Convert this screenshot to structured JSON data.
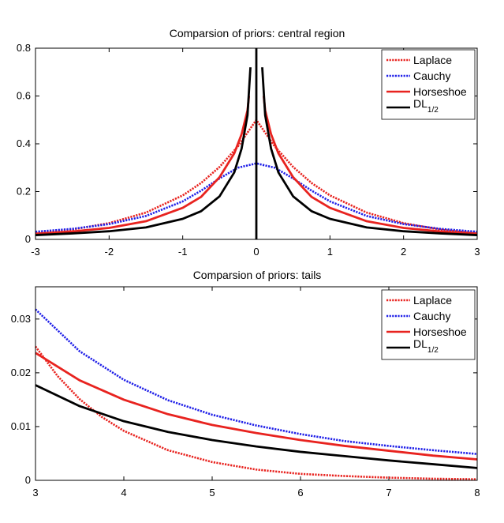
{
  "chart_data": [
    {
      "type": "line",
      "title": "Comparsion of priors: central region",
      "xlabel": "",
      "ylabel": "",
      "xlim": [
        -3,
        3
      ],
      "ylim": [
        0,
        0.8
      ],
      "xticks": [
        -3,
        -2,
        -1,
        0,
        1,
        2,
        3
      ],
      "yticks": [
        0,
        0.2,
        0.4,
        0.6,
        0.8
      ],
      "xtick_labels": [
        "-3",
        "-2",
        "-1",
        "0",
        "1",
        "2",
        "3"
      ],
      "ytick_labels": [
        "0",
        "0.2",
        "0.4",
        "0.6",
        "0.8"
      ],
      "grid": false,
      "legend_position": "top-right",
      "series": [
        {
          "name": "Laplace",
          "color": "#e8231f",
          "style": "dotted",
          "x": [
            -3,
            -2.5,
            -2,
            -1.5,
            -1,
            -0.75,
            -0.5,
            -0.25,
            0,
            0.25,
            0.5,
            0.75,
            1,
            1.5,
            2,
            2.5,
            3
          ],
          "y": [
            0.025,
            0.041,
            0.068,
            0.112,
            0.184,
            0.236,
            0.303,
            0.389,
            0.5,
            0.389,
            0.303,
            0.236,
            0.184,
            0.112,
            0.068,
            0.041,
            0.025
          ]
        },
        {
          "name": "Cauchy",
          "color": "#1f1fe8",
          "style": "dotted",
          "x": [
            -3,
            -2.5,
            -2,
            -1.5,
            -1,
            -0.75,
            -0.5,
            -0.25,
            0,
            0.25,
            0.5,
            0.75,
            1,
            1.5,
            2,
            2.5,
            3
          ],
          "y": [
            0.032,
            0.044,
            0.064,
            0.098,
            0.159,
            0.204,
            0.255,
            0.3,
            0.318,
            0.3,
            0.255,
            0.204,
            0.159,
            0.098,
            0.064,
            0.044,
            0.032
          ]
        },
        {
          "name": "Horseshoe",
          "color": "#e8231f",
          "style": "solid",
          "segments": [
            {
              "x": [
                -3,
                -2.5,
                -2,
                -1.5,
                -1,
                -0.75,
                -0.5,
                -0.3,
                -0.2,
                -0.12,
                -0.1
              ],
              "y": [
                0.024,
                0.033,
                0.048,
                0.076,
                0.132,
                0.178,
                0.26,
                0.36,
                0.44,
                0.54,
                0.6
              ]
            },
            {
              "x": [
                0.1,
                0.12,
                0.2,
                0.3,
                0.5,
                0.75,
                1,
                1.5,
                2,
                2.5,
                3
              ],
              "y": [
                0.6,
                0.54,
                0.44,
                0.36,
                0.26,
                0.178,
                0.132,
                0.076,
                0.048,
                0.033,
                0.024
              ]
            }
          ]
        },
        {
          "name": "DL_{1/2}",
          "label_main": "DL",
          "label_sub": "1/2",
          "color": "#000000",
          "style": "solid",
          "segments": [
            {
              "x": [
                -3,
                -2.5,
                -2,
                -1.5,
                -1,
                -0.75,
                -0.5,
                -0.3,
                -0.2,
                -0.12,
                -0.08
              ],
              "y": [
                0.018,
                0.025,
                0.034,
                0.05,
                0.086,
                0.118,
                0.18,
                0.28,
                0.38,
                0.52,
                0.72
              ]
            },
            {
              "x": [
                0,
                0
              ],
              "y": [
                0,
                0.8
              ]
            },
            {
              "x": [
                0.08,
                0.12,
                0.2,
                0.3,
                0.5,
                0.75,
                1,
                1.5,
                2,
                2.5,
                3
              ],
              "y": [
                0.72,
                0.52,
                0.38,
                0.28,
                0.18,
                0.118,
                0.086,
                0.05,
                0.034,
                0.025,
                0.018
              ]
            }
          ]
        }
      ]
    },
    {
      "type": "line",
      "title": "Comparsion of priors: tails",
      "xlabel": "",
      "ylabel": "",
      "xlim": [
        3,
        8
      ],
      "ylim": [
        0,
        0.036
      ],
      "xticks": [
        3,
        4,
        5,
        6,
        7,
        8
      ],
      "yticks": [
        0,
        0.01,
        0.02,
        0.03
      ],
      "xtick_labels": [
        "3",
        "4",
        "5",
        "6",
        "7",
        "8"
      ],
      "ytick_labels": [
        "0",
        "0.01",
        "0.02",
        "0.03"
      ],
      "grid": false,
      "legend_position": "top-right",
      "series": [
        {
          "name": "Laplace",
          "color": "#e8231f",
          "style": "dotted",
          "x": [
            3,
            3.25,
            3.5,
            3.75,
            4,
            4.5,
            5,
            5.5,
            6,
            6.5,
            7,
            7.5,
            8
          ],
          "y": [
            0.0249,
            0.0194,
            0.0151,
            0.0118,
            0.0092,
            0.0056,
            0.0034,
            0.002,
            0.0012,
            0.0008,
            0.0005,
            0.0003,
            0.0002
          ]
        },
        {
          "name": "Cauchy",
          "color": "#1f1fe8",
          "style": "dotted",
          "x": [
            3,
            3.5,
            4,
            4.5,
            5,
            5.5,
            6,
            6.5,
            7,
            7.5,
            8
          ],
          "y": [
            0.0318,
            0.024,
            0.0187,
            0.0149,
            0.0122,
            0.0102,
            0.0086,
            0.0073,
            0.0064,
            0.0056,
            0.0049
          ]
        },
        {
          "name": "Horseshoe",
          "color": "#e8231f",
          "style": "solid",
          "x": [
            3,
            3.5,
            4,
            4.5,
            5,
            5.5,
            6,
            6.5,
            7,
            7.5,
            8
          ],
          "y": [
            0.0237,
            0.0186,
            0.015,
            0.0123,
            0.0103,
            0.0088,
            0.0075,
            0.0064,
            0.0055,
            0.0046,
            0.0039
          ]
        },
        {
          "name": "DL_{1/2}",
          "label_main": "DL",
          "label_sub": "1/2",
          "color": "#000000",
          "style": "solid",
          "x": [
            3,
            3.5,
            4,
            4.5,
            5,
            5.5,
            6,
            6.5,
            7,
            7.5,
            8
          ],
          "y": [
            0.0177,
            0.0138,
            0.011,
            0.009,
            0.0075,
            0.0063,
            0.0053,
            0.0045,
            0.0037,
            0.003,
            0.0023
          ]
        }
      ]
    }
  ]
}
